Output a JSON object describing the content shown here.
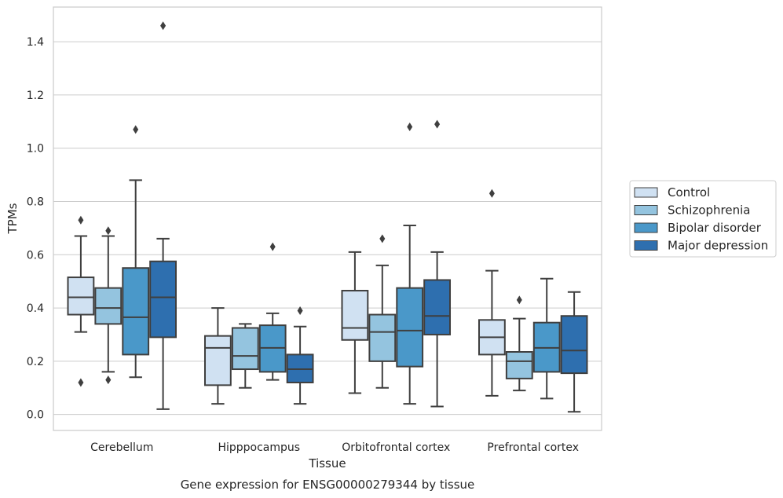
{
  "chart_data": {
    "type": "box",
    "title": "",
    "caption": "Gene expression for ENSG00000279344 by tissue",
    "xlabel": "Tissue",
    "ylabel": "TPMs",
    "ylim": [
      -0.06,
      1.53
    ],
    "yticks": [
      0.0,
      0.2,
      0.4,
      0.6,
      0.8,
      1.0,
      1.2,
      1.4
    ],
    "ytick_labels": [
      "0.0",
      "0.2",
      "0.4",
      "0.6",
      "0.8",
      "1.0",
      "1.2",
      "1.4"
    ],
    "grid": true,
    "legend_position": "right",
    "categories": [
      "Cerebellum",
      "Hipppocampus",
      "Orbitofrontal cortex",
      "Prefrontal cortex"
    ],
    "series": [
      {
        "name": "Control",
        "color": "#d0e1f2",
        "boxes": [
          {
            "whislo": 0.31,
            "q1": 0.375,
            "med": 0.44,
            "q3": 0.515,
            "whishi": 0.67,
            "fliers": [
              0.73,
              0.12
            ]
          },
          {
            "whislo": 0.04,
            "q1": 0.11,
            "med": 0.25,
            "q3": 0.295,
            "whishi": 0.4,
            "fliers": []
          },
          {
            "whislo": 0.08,
            "q1": 0.28,
            "med": 0.325,
            "q3": 0.465,
            "whishi": 0.61,
            "fliers": []
          },
          {
            "whislo": 0.07,
            "q1": 0.225,
            "med": 0.29,
            "q3": 0.355,
            "whishi": 0.54,
            "fliers": [
              0.83
            ]
          }
        ]
      },
      {
        "name": "Schizophrenia",
        "color": "#94c4df",
        "boxes": [
          {
            "whislo": 0.16,
            "q1": 0.34,
            "med": 0.4,
            "q3": 0.475,
            "whishi": 0.67,
            "fliers": [
              0.69,
              0.13
            ]
          },
          {
            "whislo": 0.1,
            "q1": 0.17,
            "med": 0.22,
            "q3": 0.325,
            "whishi": 0.34,
            "fliers": []
          },
          {
            "whislo": 0.1,
            "q1": 0.2,
            "med": 0.31,
            "q3": 0.375,
            "whishi": 0.56,
            "fliers": [
              0.66
            ]
          },
          {
            "whislo": 0.09,
            "q1": 0.135,
            "med": 0.2,
            "q3": 0.235,
            "whishi": 0.36,
            "fliers": [
              0.43
            ]
          }
        ]
      },
      {
        "name": "Bipolar disorder",
        "color": "#4a98c9",
        "boxes": [
          {
            "whislo": 0.14,
            "q1": 0.225,
            "med": 0.365,
            "q3": 0.55,
            "whishi": 0.88,
            "fliers": [
              1.07
            ]
          },
          {
            "whislo": 0.13,
            "q1": 0.16,
            "med": 0.25,
            "q3": 0.335,
            "whishi": 0.38,
            "fliers": [
              0.63
            ]
          },
          {
            "whislo": 0.04,
            "q1": 0.18,
            "med": 0.315,
            "q3": 0.475,
            "whishi": 0.71,
            "fliers": [
              1.08
            ]
          },
          {
            "whislo": 0.06,
            "q1": 0.16,
            "med": 0.25,
            "q3": 0.345,
            "whishi": 0.51,
            "fliers": []
          }
        ]
      },
      {
        "name": "Major depression",
        "color": "#2e6faf",
        "boxes": [
          {
            "whislo": 0.02,
            "q1": 0.29,
            "med": 0.44,
            "q3": 0.575,
            "whishi": 0.66,
            "fliers": [
              1.46
            ]
          },
          {
            "whislo": 0.04,
            "q1": 0.12,
            "med": 0.17,
            "q3": 0.225,
            "whishi": 0.33,
            "fliers": [
              0.39
            ]
          },
          {
            "whislo": 0.03,
            "q1": 0.3,
            "med": 0.37,
            "q3": 0.505,
            "whishi": 0.61,
            "fliers": [
              1.09
            ]
          },
          {
            "whislo": 0.01,
            "q1": 0.155,
            "med": 0.24,
            "q3": 0.37,
            "whishi": 0.46,
            "fliers": []
          }
        ]
      }
    ]
  }
}
